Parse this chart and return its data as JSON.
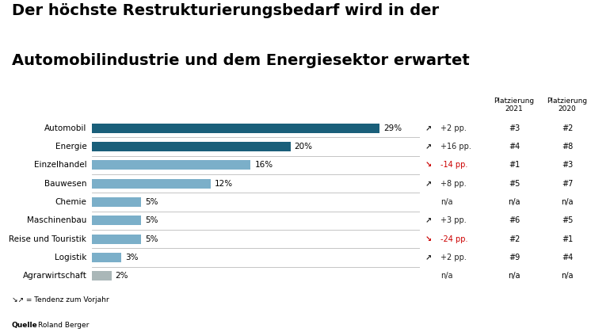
{
  "title_line1": "Der höchste Restrukturierungsbedarf wird in der",
  "title_line2": "Automobilindustrie und dem Energiesektor erwartet",
  "categories": [
    "Automobil",
    "Energie",
    "Einzelhandel",
    "Bauwesen",
    "Chemie",
    "Maschinenbau",
    "Reise und Touristik",
    "Logistik",
    "Agrarwirtschaft"
  ],
  "values": [
    29,
    20,
    16,
    12,
    5,
    5,
    5,
    3,
    2
  ],
  "bar_colors": [
    "#1a5f7a",
    "#1a5f7a",
    "#7bafc9",
    "#7bafc9",
    "#7bafc9",
    "#7bafc9",
    "#7bafc9",
    "#7bafc9",
    "#aab7b8"
  ],
  "trend_arrows": [
    "↗",
    "↗",
    "↘",
    "↗",
    "",
    "↗",
    "↘",
    "↗",
    ""
  ],
  "trend_colors": [
    "#222222",
    "#222222",
    "#cc0000",
    "#222222",
    "#222222",
    "#222222",
    "#cc0000",
    "#222222",
    "#222222"
  ],
  "pp_values": [
    "+2 pp.",
    "+16 pp.",
    "-14 pp.",
    "+8 pp.",
    "n/a",
    "+3 pp.",
    "-24 pp.",
    "+2 pp.",
    "n/a"
  ],
  "pp_colors": [
    "#222222",
    "#222222",
    "#cc0000",
    "#222222",
    "#222222",
    "#222222",
    "#cc0000",
    "#222222",
    "#222222"
  ],
  "platz_2021": [
    "#3",
    "#4",
    "#1",
    "#5",
    "n/a",
    "#6",
    "#2",
    "#9",
    "n/a"
  ],
  "platz_2020": [
    "#2",
    "#8",
    "#3",
    "#7",
    "n/a",
    "#5",
    "#1",
    "#4",
    "n/a"
  ],
  "header_platz2021": "Platzierung\n2021",
  "header_platz2020": "Platzierung\n2020",
  "source_label": "Quelle",
  "source_text": " Roland Berger",
  "bg_color": "#ffffff",
  "bar_label_fontsize": 7.5,
  "cat_fontsize": 7.5,
  "title_fontsize": 14
}
